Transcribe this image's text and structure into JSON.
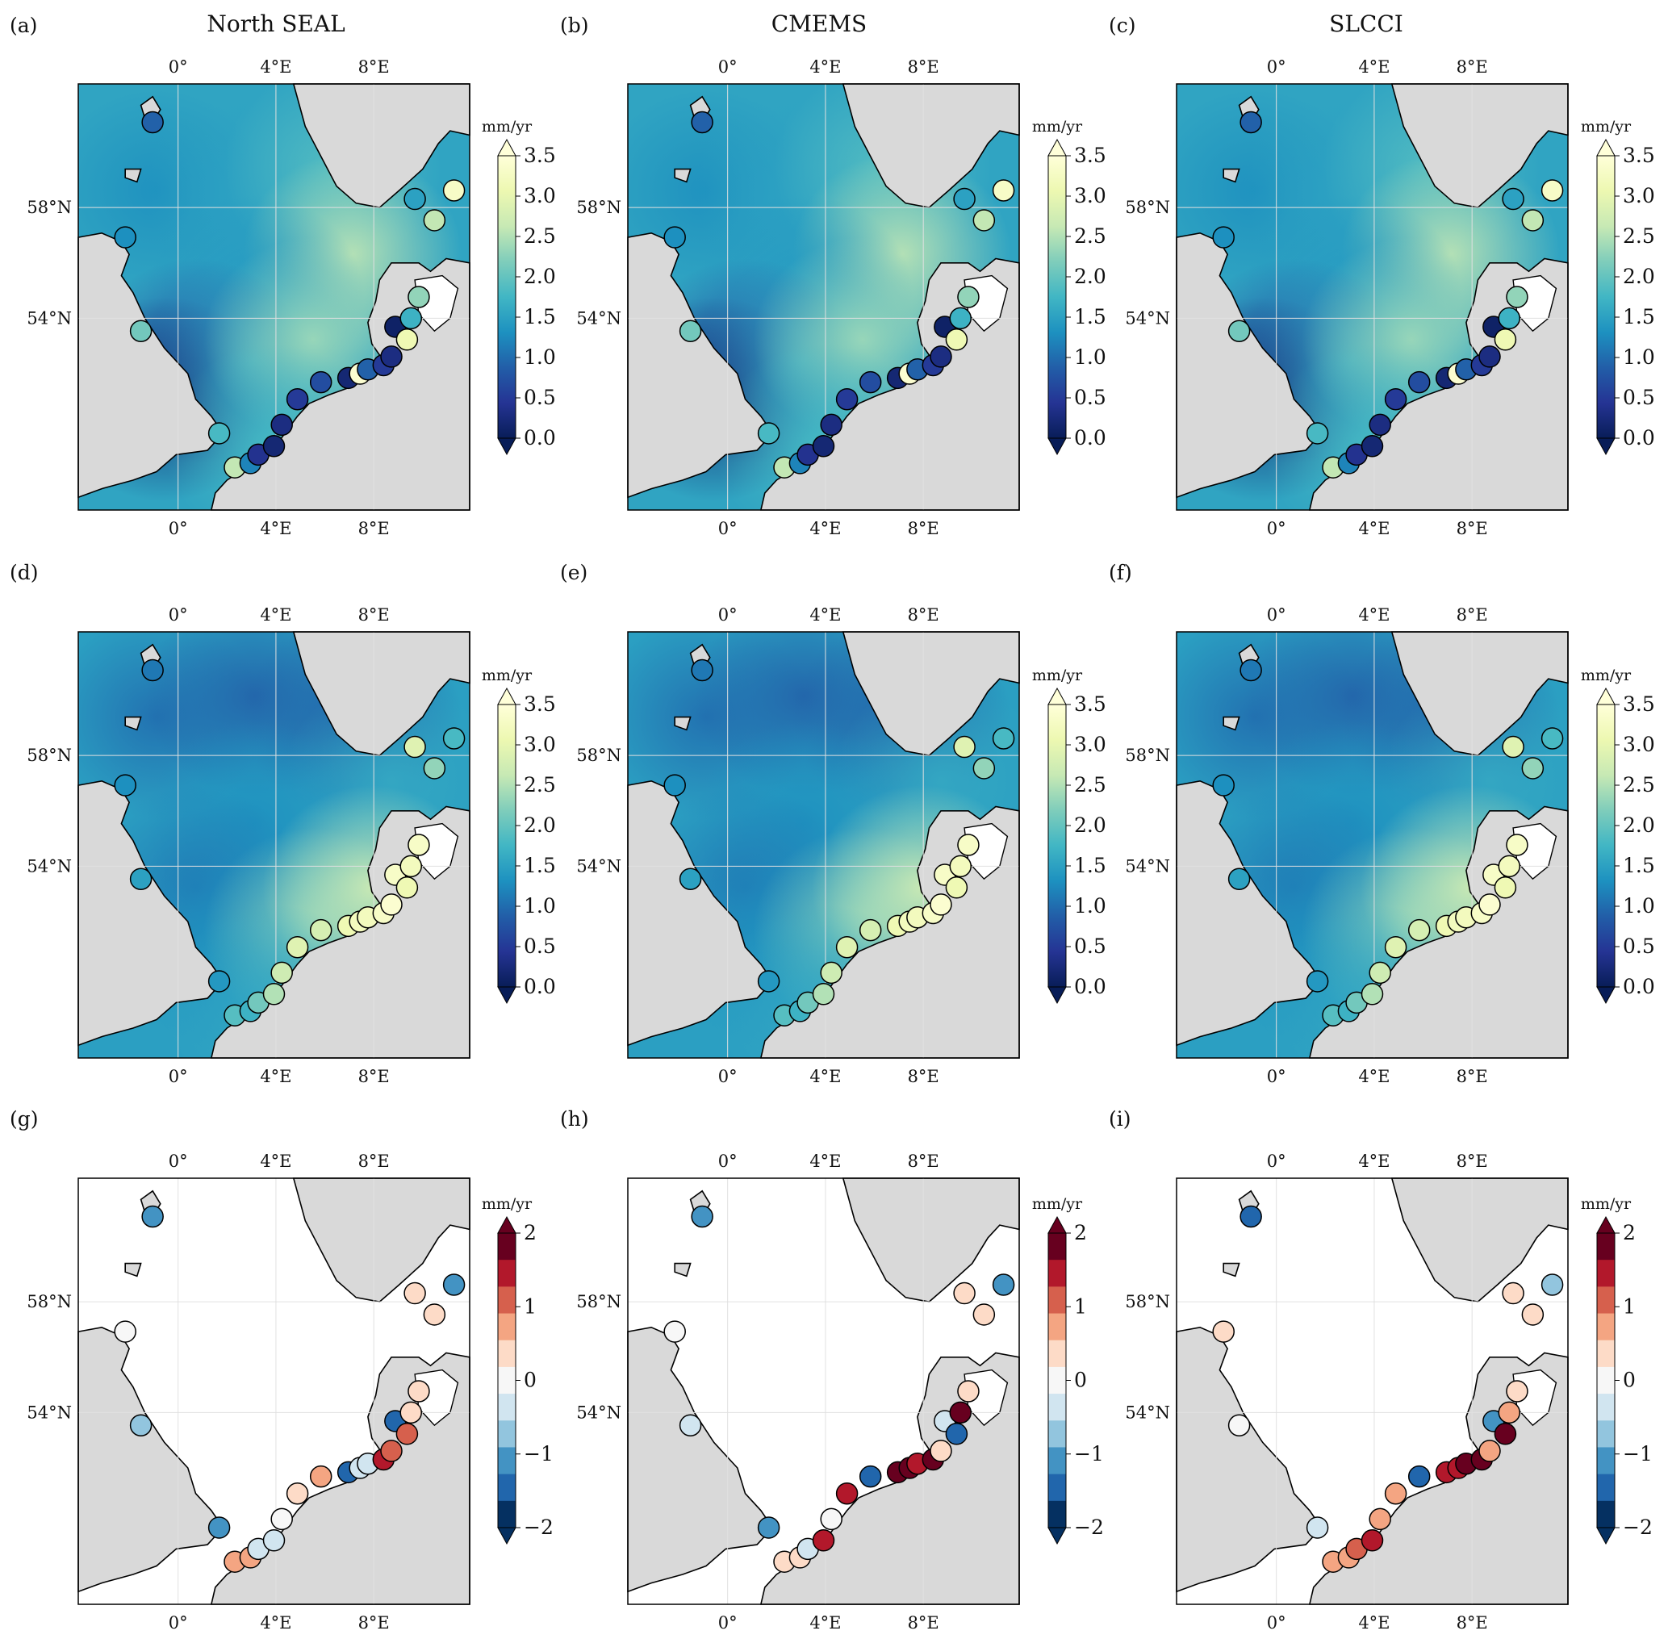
{
  "column_titles": [
    "North SEAL",
    "CMEMS",
    "SLCCI"
  ],
  "panel_labels": [
    "(a)",
    "(b)",
    "(c)",
    "(d)",
    "(e)",
    "(f)",
    "(g)",
    "(h)",
    "(i)"
  ],
  "axes": {
    "lon_ticks": [
      "0°",
      "4°E",
      "8°E"
    ],
    "lat_ticks": [
      "58°N",
      "54°N"
    ],
    "lon_values": [
      0,
      4,
      8
    ],
    "lat_values": [
      58,
      54
    ]
  },
  "colorbars": {
    "trend": {
      "unit": "mm/yr",
      "ticks": [
        "0.0",
        "0.5",
        "1.0",
        "1.5",
        "2.0",
        "2.5",
        "3.0",
        "3.5"
      ],
      "range": [
        0,
        3.5
      ],
      "colors": [
        "#081d58",
        "#253494",
        "#225ea8",
        "#1d91c0",
        "#41b6c4",
        "#7fcdbb",
        "#c7e9b4",
        "#edf8b1",
        "#ffffd9"
      ],
      "extend": "both"
    },
    "difference": {
      "unit": "mm/yr",
      "ticks": [
        "2",
        "1",
        "0",
        "−1",
        "−2"
      ],
      "range": [
        -2,
        2
      ],
      "colors": [
        "#67001f",
        "#b2182b",
        "#d6604d",
        "#f4a582",
        "#fddbc7",
        "#f7f7f7",
        "#d1e5f0",
        "#92c5de",
        "#4393c3",
        "#2166ac",
        "#053061"
      ],
      "extend": "both"
    }
  },
  "map_colors": {
    "land": "#d9d9d9",
    "coast": "#000000",
    "grid": "#e0e0e0"
  },
  "panels": [
    {
      "label": "(a)",
      "title": "North SEAL",
      "row": "total",
      "source": "North SEAL"
    },
    {
      "label": "(b)",
      "title": "CMEMS",
      "row": "total",
      "source": "CMEMS"
    },
    {
      "label": "(c)",
      "title": "SLCCI",
      "row": "total",
      "source": "SLCCI"
    },
    {
      "label": "(d)",
      "row": "corrected",
      "source": "North SEAL"
    },
    {
      "label": "(e)",
      "row": "corrected",
      "source": "CMEMS"
    },
    {
      "label": "(f)",
      "row": "corrected",
      "source": "SLCCI"
    },
    {
      "label": "(g)",
      "row": "difference",
      "source": "North SEAL"
    },
    {
      "label": "(h)",
      "row": "difference",
      "source": "CMEMS"
    },
    {
      "label": "(i)",
      "row": "difference",
      "source": "SLCCI"
    }
  ],
  "tide_gauges": {
    "row_total": [
      0.9,
      1.3,
      2.1,
      1.8,
      2.6,
      1.2,
      0.4,
      0.2,
      0.3,
      0.5,
      0.7,
      0.2,
      3.4,
      0.9,
      0.5,
      0.3,
      0.1,
      3.1,
      1.7,
      2.3,
      1.5,
      2.6,
      3.3
    ],
    "row_corrected": [
      1.1,
      1.3,
      1.5,
      1.4,
      1.9,
      1.7,
      2.1,
      2.5,
      2.7,
      2.9,
      2.8,
      3.1,
      3.2,
      3.2,
      3.3,
      3.4,
      3.3,
      3.1,
      3.2,
      3.3,
      2.9,
      2.3,
      1.8
    ],
    "row_difference": [
      [
        -1.4,
        -0.2,
        -0.7,
        -1.4,
        0.8,
        0.6,
        -0.4,
        -0.3,
        0.0,
        0.3,
        0.9,
        -1.6,
        -0.4,
        -0.6,
        1.7,
        1.2,
        -1.8,
        1.1,
        0.4,
        0.2,
        0.2,
        0.5,
        -1.2
      ],
      [
        -1.4,
        -0.1,
        -0.6,
        -1.2,
        0.5,
        0.3,
        -0.6,
        1.7,
        0.1,
        1.6,
        -1.6,
        1.8,
        1.9,
        1.6,
        1.9,
        0.3,
        -0.6,
        -1.5,
        1.8,
        0.4,
        0.2,
        0.5,
        -1.3
      ],
      [
        -1.5,
        0.3,
        0.0,
        -0.6,
        0.7,
        0.6,
        1.1,
        1.7,
        0.6,
        0.9,
        -1.8,
        1.7,
        1.6,
        1.8,
        2.0,
        0.6,
        -1.1,
        1.9,
        0.7,
        0.5,
        0.5,
        0.3,
        -1.0
      ]
    ]
  }
}
